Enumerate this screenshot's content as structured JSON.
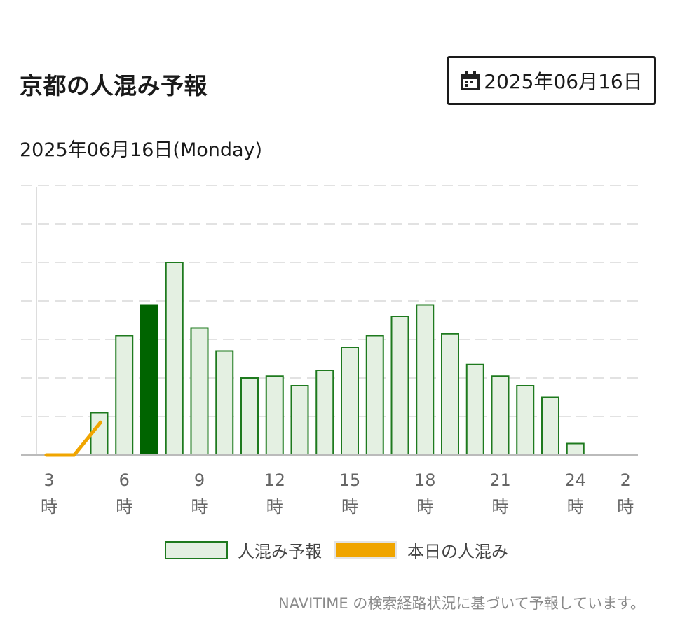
{
  "header": {
    "title": "京都の人混み予報",
    "date_button_label": "2025年06月16日",
    "date_heading": "2025年06月16日(Monday)"
  },
  "legend": {
    "forecast_label": "人混み予報",
    "today_label": "本日の人混み"
  },
  "footnote": "NAVITIME の検索経路状況に基づいて予報しています。",
  "colors": {
    "bar_fill": "#e4f0e2",
    "bar_stroke": "#1e7a1e",
    "current_bar_fill": "#006400",
    "today_line": "#f0a500",
    "grid": "#e2e2e2"
  },
  "icons": {
    "date_button": "calendar-icon"
  },
  "chart_data": {
    "type": "bar",
    "title": "",
    "xlabel": "",
    "ylabel": "",
    "hours": [
      3,
      4,
      5,
      6,
      7,
      8,
      9,
      10,
      11,
      12,
      13,
      14,
      15,
      16,
      17,
      18,
      19,
      20,
      21,
      22,
      23,
      24,
      25,
      26
    ],
    "tick_hours": [
      3,
      6,
      9,
      12,
      15,
      18,
      21,
      24,
      26
    ],
    "tick_labels": [
      {
        "num": "3",
        "unit": "時"
      },
      {
        "num": "6",
        "unit": "時"
      },
      {
        "num": "9",
        "unit": "時"
      },
      {
        "num": "12",
        "unit": "時"
      },
      {
        "num": "15",
        "unit": "時"
      },
      {
        "num": "18",
        "unit": "時"
      },
      {
        "num": "21",
        "unit": "時"
      },
      {
        "num": "24",
        "unit": "時"
      },
      {
        "num": "2",
        "unit": "時"
      }
    ],
    "series": [
      {
        "key": "forecast",
        "type": "bar",
        "values": [
          0,
          0,
          1.1,
          3.1,
          3.9,
          5.0,
          3.3,
          2.7,
          2.0,
          2.05,
          1.8,
          2.2,
          2.8,
          3.1,
          3.6,
          3.9,
          3.15,
          2.35,
          2.05,
          1.8,
          1.5,
          0.3,
          0,
          0
        ]
      },
      {
        "key": "today",
        "type": "line",
        "x": [
          3,
          4,
          5
        ],
        "values": [
          0,
          0,
          0.85
        ]
      }
    ],
    "current_hour": 7,
    "ylim": [
      0,
      7
    ],
    "grid": true,
    "legend_position": "bottom"
  }
}
